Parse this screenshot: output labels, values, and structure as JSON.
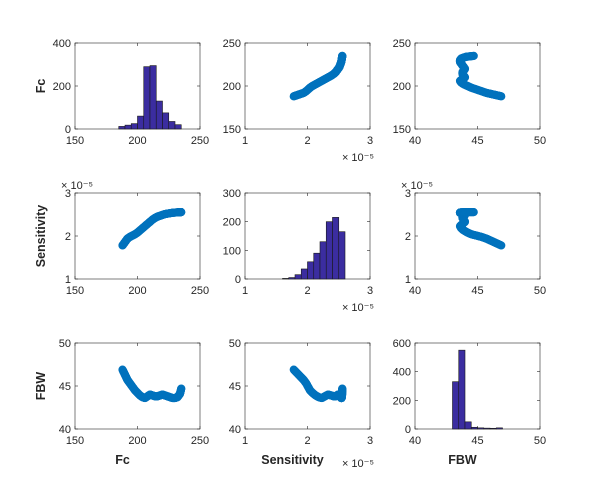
{
  "chart_data": {
    "type": "scatter-matrix",
    "variables": [
      "Fc",
      "Sensitivity",
      "FBW"
    ],
    "marker_color": "#0072bd",
    "bar_color": "#3b2da0",
    "axes": {
      "Fc": {
        "lim": [
          150,
          250
        ],
        "ticks": [
          150,
          200,
          250
        ],
        "tick_labels": [
          "150",
          "200",
          "250"
        ],
        "exponent": ""
      },
      "Sensitivity": {
        "lim": [
          1e-05,
          3e-05
        ],
        "ticks": [
          1e-05,
          2e-05,
          3e-05
        ],
        "tick_labels": [
          "1",
          "2",
          "3"
        ],
        "exponent": "× 10⁻⁵"
      },
      "FBW": {
        "lim": [
          40,
          50
        ],
        "ticks": [
          40,
          45,
          50
        ],
        "tick_labels": [
          "40",
          "45",
          "50"
        ],
        "exponent": ""
      }
    },
    "histograms": [
      {
        "variable": "Fc",
        "ylim": [
          0,
          400
        ],
        "yticks": [
          "0",
          "200",
          "400"
        ],
        "bin_edges": [
          185,
          190,
          195,
          200,
          205,
          210,
          215,
          220,
          225,
          230,
          235
        ],
        "counts": [
          12,
          18,
          25,
          60,
          290,
          295,
          130,
          75,
          35,
          20
        ]
      },
      {
        "variable": "Sensitivity",
        "ylim": [
          0,
          300
        ],
        "yticks": [
          "0",
          "100",
          "200",
          "300"
        ],
        "bin_edges": [
          1.6e-05,
          1.7e-05,
          1.8e-05,
          1.9e-05,
          2e-05,
          2.1e-05,
          2.2e-05,
          2.3e-05,
          2.4e-05,
          2.5e-05,
          2.6e-05
        ],
        "counts": [
          2,
          5,
          15,
          35,
          60,
          90,
          130,
          200,
          215,
          165
        ]
      },
      {
        "variable": "FBW",
        "ylim": [
          0,
          600
        ],
        "yticks": [
          "0",
          "200",
          "400",
          "600"
        ],
        "bin_edges": [
          43,
          43.5,
          44,
          44.5,
          45,
          45.5,
          46,
          46.5,
          47
        ],
        "counts": [
          330,
          550,
          50,
          12,
          8,
          6,
          5,
          8
        ]
      }
    ],
    "curve": {
      "Fc": [
        188,
        189,
        190,
        191,
        192,
        194,
        196,
        198,
        200,
        202,
        204,
        206,
        208,
        210,
        212,
        214,
        216,
        218,
        220,
        222,
        224,
        226,
        228,
        230,
        232,
        233,
        234,
        234.5,
        235
      ],
      "Sensitivity": [
        1.78e-05,
        1.82e-05,
        1.86e-05,
        1.9e-05,
        1.94e-05,
        1.98e-05,
        2.01e-05,
        2.04e-05,
        2.08e-05,
        2.13e-05,
        2.18e-05,
        2.23e-05,
        2.28e-05,
        2.33e-05,
        2.38e-05,
        2.42e-05,
        2.45e-05,
        2.47e-05,
        2.49e-05,
        2.51e-05,
        2.52e-05,
        2.53e-05,
        2.54e-05,
        2.545e-05,
        2.55e-05,
        2.552e-05,
        2.554e-05,
        2.555e-05,
        2.556e-05
      ],
      "FBW": [
        46.9,
        46.6,
        46.3,
        46.0,
        45.7,
        45.3,
        44.9,
        44.5,
        44.2,
        43.9,
        43.7,
        43.6,
        43.8,
        44.0,
        43.9,
        43.8,
        43.8,
        43.9,
        44.0,
        43.9,
        43.8,
        43.7,
        43.6,
        43.6,
        43.7,
        43.9,
        44.1,
        44.4,
        44.7
      ]
    }
  }
}
